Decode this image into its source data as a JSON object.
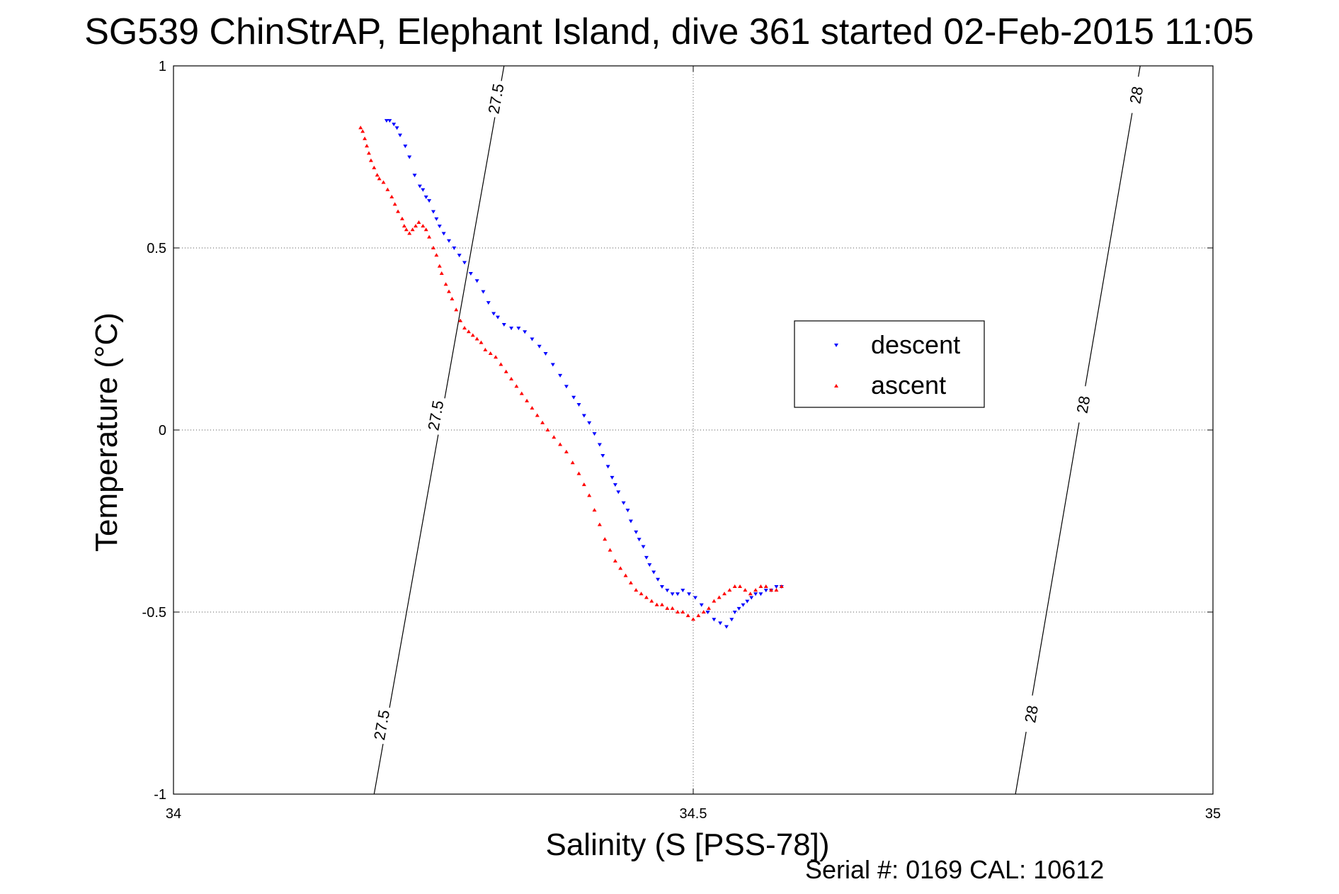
{
  "chart_data": {
    "type": "scatter",
    "title": "SG539 ChinStrAP, Elephant Island, dive 361 started 02-Feb-2015 11:05",
    "xlabel": "Salinity (S [PSS-78])",
    "ylabel": "Temperature (°C)",
    "xlim": [
      34,
      35
    ],
    "ylim": [
      -1,
      1
    ],
    "xticks": [
      34,
      34.5,
      35
    ],
    "xtick_labels": [
      "34",
      "34.5",
      "35"
    ],
    "yticks": [
      -1,
      -0.5,
      0,
      0.5,
      1
    ],
    "ytick_labels": [
      "-1",
      "-0.5",
      "0",
      "0.5",
      "1"
    ],
    "grid": true,
    "legend_position": "right-middle",
    "footer": "Serial #: 0169 CAL: 10612",
    "contour_lines": [
      {
        "level_label": "27.5",
        "x": [
          34.193,
          34.318
        ],
        "y": [
          -1,
          1
        ],
        "labels": [
          {
            "text": "27.5",
            "x": 34.2,
            "y": -0.81
          },
          {
            "text": "27.5",
            "x": 34.252,
            "y": 0.04
          },
          {
            "text": "27.5",
            "x": 34.31,
            "y": 0.91
          }
        ]
      },
      {
        "level_label": "28",
        "x": [
          34.81,
          34.93
        ],
        "y": [
          -1,
          1
        ],
        "labels": [
          {
            "text": "28",
            "x": 34.825,
            "y": -0.78
          },
          {
            "text": "28",
            "x": 34.875,
            "y": 0.07
          },
          {
            "text": "28",
            "x": 34.926,
            "y": 0.92
          }
        ]
      }
    ],
    "series": [
      {
        "name": "descent",
        "color": "#0000ff",
        "marker": "triangle-down",
        "x": [
          34.205,
          34.208,
          34.212,
          34.215,
          34.218,
          34.223,
          34.227,
          34.232,
          34.237,
          34.24,
          34.243,
          34.246,
          34.25,
          34.253,
          34.256,
          34.26,
          34.265,
          34.27,
          34.275,
          34.28,
          34.286,
          34.292,
          34.298,
          34.303,
          34.308,
          34.312,
          34.318,
          34.325,
          34.332,
          34.338,
          34.345,
          34.352,
          34.358,
          34.365,
          34.372,
          34.378,
          34.385,
          34.39,
          34.395,
          34.4,
          34.405,
          34.41,
          34.413,
          34.418,
          34.422,
          34.425,
          34.428,
          34.433,
          34.437,
          34.44,
          34.445,
          34.448,
          34.452,
          34.455,
          34.458,
          34.462,
          34.466,
          34.47,
          34.475,
          34.48,
          34.485,
          34.49,
          34.496,
          34.502,
          34.508,
          34.514,
          34.52,
          34.526,
          34.532,
          34.537,
          34.54,
          34.544,
          34.548,
          34.552,
          34.556,
          34.56,
          34.565,
          34.57,
          34.575,
          34.58,
          34.585
        ],
        "y": [
          0.85,
          0.85,
          0.84,
          0.83,
          0.81,
          0.78,
          0.75,
          0.7,
          0.67,
          0.66,
          0.64,
          0.63,
          0.6,
          0.58,
          0.56,
          0.54,
          0.52,
          0.5,
          0.48,
          0.46,
          0.43,
          0.41,
          0.38,
          0.35,
          0.32,
          0.31,
          0.29,
          0.28,
          0.28,
          0.27,
          0.25,
          0.23,
          0.21,
          0.18,
          0.15,
          0.12,
          0.09,
          0.07,
          0.04,
          0.02,
          -0.01,
          -0.04,
          -0.07,
          -0.1,
          -0.13,
          -0.15,
          -0.17,
          -0.2,
          -0.22,
          -0.25,
          -0.28,
          -0.3,
          -0.32,
          -0.35,
          -0.37,
          -0.39,
          -0.41,
          -0.43,
          -0.44,
          -0.45,
          -0.45,
          -0.44,
          -0.45,
          -0.46,
          -0.48,
          -0.5,
          -0.52,
          -0.53,
          -0.54,
          -0.52,
          -0.5,
          -0.49,
          -0.48,
          -0.47,
          -0.46,
          -0.45,
          -0.45,
          -0.44,
          -0.44,
          -0.43,
          -0.43
        ]
      },
      {
        "name": "ascent",
        "color": "#ff0000",
        "marker": "triangle-up",
        "x": [
          34.18,
          34.182,
          34.184,
          34.186,
          34.188,
          34.19,
          34.193,
          34.196,
          34.198,
          34.202,
          34.206,
          34.21,
          34.213,
          34.216,
          34.22,
          34.222,
          34.224,
          34.227,
          34.23,
          34.233,
          34.236,
          34.24,
          34.243,
          34.246,
          34.25,
          34.253,
          34.256,
          34.258,
          34.262,
          34.265,
          34.268,
          34.272,
          34.276,
          34.28,
          34.284,
          34.288,
          34.292,
          34.296,
          34.3,
          34.305,
          34.31,
          34.315,
          34.32,
          34.325,
          34.33,
          34.335,
          34.34,
          34.345,
          34.35,
          34.355,
          34.36,
          34.366,
          34.372,
          34.378,
          34.384,
          34.39,
          34.395,
          34.4,
          34.405,
          34.41,
          34.415,
          34.42,
          34.425,
          34.43,
          34.435,
          34.44,
          34.445,
          34.45,
          34.455,
          34.46,
          34.465,
          34.47,
          34.475,
          34.48,
          34.485,
          34.49,
          34.495,
          34.5,
          34.505,
          34.51,
          34.515,
          34.52,
          34.525,
          34.53,
          34.535,
          34.54,
          34.545,
          34.55,
          34.555,
          34.56,
          34.565,
          34.57,
          34.575,
          34.58,
          34.585
        ],
        "y": [
          0.83,
          0.82,
          0.8,
          0.78,
          0.76,
          0.74,
          0.72,
          0.7,
          0.69,
          0.68,
          0.66,
          0.64,
          0.62,
          0.6,
          0.58,
          0.56,
          0.55,
          0.54,
          0.55,
          0.56,
          0.57,
          0.56,
          0.55,
          0.53,
          0.5,
          0.48,
          0.45,
          0.43,
          0.4,
          0.38,
          0.36,
          0.33,
          0.3,
          0.28,
          0.27,
          0.26,
          0.25,
          0.24,
          0.22,
          0.21,
          0.2,
          0.18,
          0.16,
          0.14,
          0.12,
          0.1,
          0.08,
          0.06,
          0.04,
          0.02,
          0.0,
          -0.02,
          -0.04,
          -0.06,
          -0.09,
          -0.12,
          -0.15,
          -0.18,
          -0.22,
          -0.26,
          -0.3,
          -0.33,
          -0.36,
          -0.38,
          -0.4,
          -0.42,
          -0.44,
          -0.45,
          -0.46,
          -0.47,
          -0.48,
          -0.48,
          -0.49,
          -0.49,
          -0.5,
          -0.5,
          -0.51,
          -0.52,
          -0.51,
          -0.5,
          -0.49,
          -0.47,
          -0.46,
          -0.45,
          -0.44,
          -0.43,
          -0.43,
          -0.44,
          -0.45,
          -0.44,
          -0.43,
          -0.43,
          -0.44,
          -0.44,
          -0.43
        ]
      }
    ]
  }
}
